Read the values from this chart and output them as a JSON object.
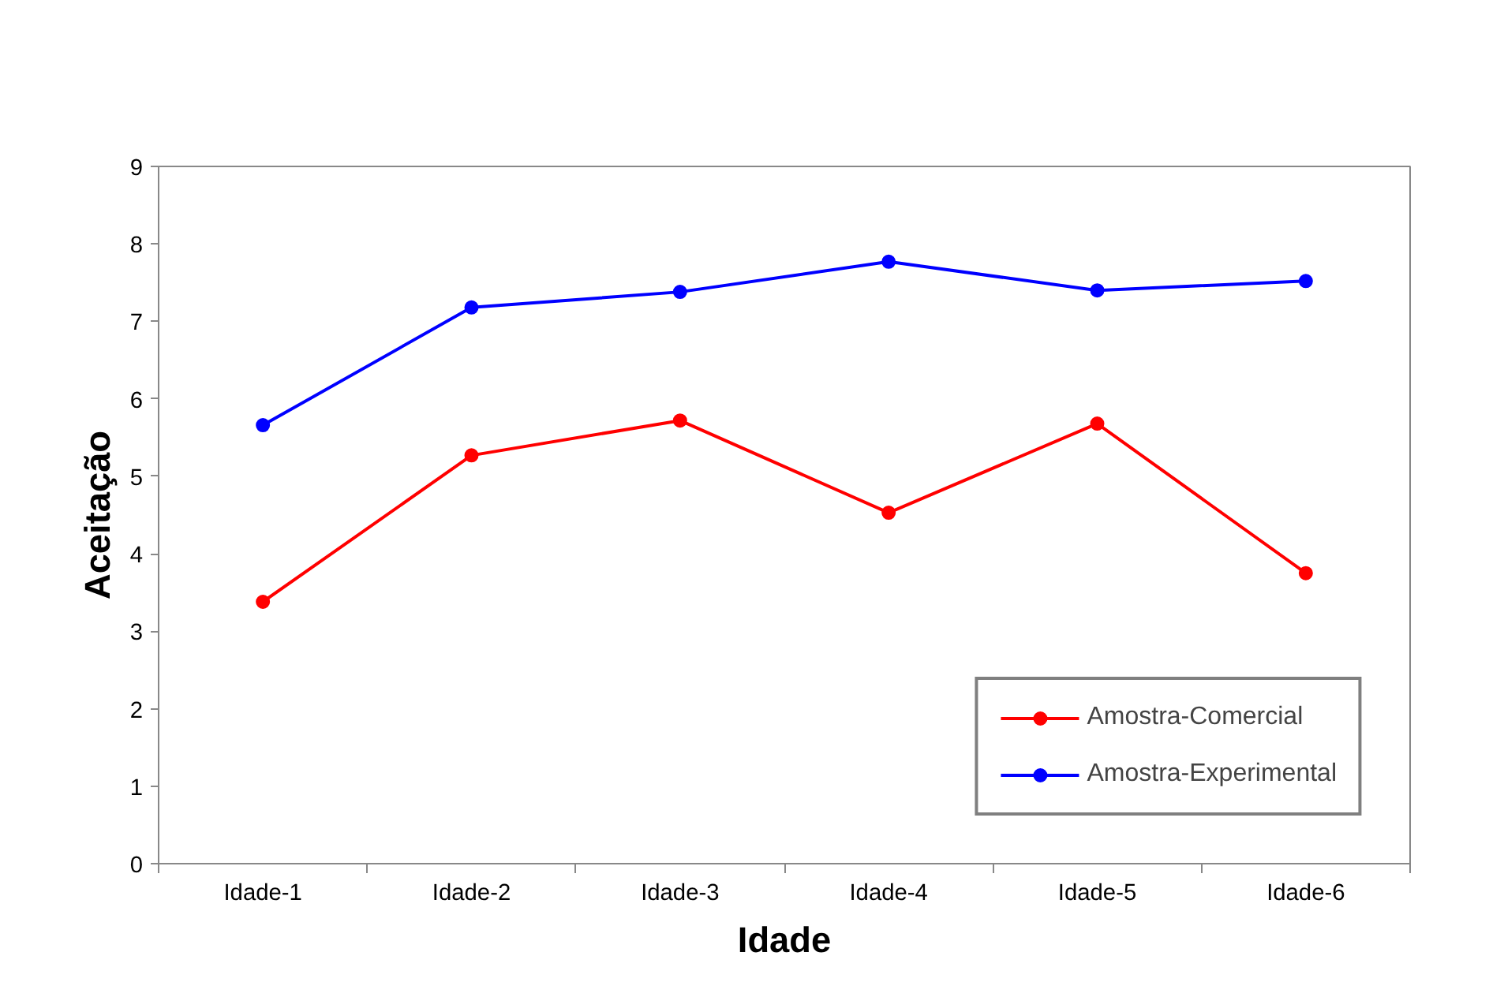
{
  "chart_data": {
    "type": "line",
    "xlabel": "Idade",
    "ylabel": "Aceitação",
    "categories": [
      "Idade-1",
      "Idade-2",
      "Idade-3",
      "Idade-4",
      "Idade-5",
      "Idade-6"
    ],
    "series": [
      {
        "name": "Amostra-Comercial",
        "color": "#ff0000",
        "values": [
          3.38,
          5.27,
          5.72,
          4.53,
          5.68,
          3.75
        ]
      },
      {
        "name": "Amostra-Experimental",
        "color": "#0000ff",
        "values": [
          5.66,
          7.18,
          7.38,
          7.77,
          7.4,
          7.52
        ]
      }
    ],
    "ylim": [
      0,
      9
    ],
    "yticks": [
      0,
      1,
      2,
      3,
      4,
      5,
      6,
      7,
      8,
      9
    ],
    "grid": false,
    "legend": "bottom right",
    "marker": "circle",
    "line_style": "solid"
  }
}
